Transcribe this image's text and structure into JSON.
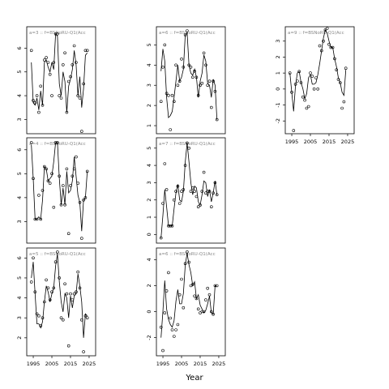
{
  "xlabel": "Year",
  "chart_data": [
    {
      "type": "line",
      "title": "a=3 :: f=BSNoRU-Q1(Acc",
      "xlim": [
        1991.5,
        2028.5
      ],
      "ylim": [
        2.4,
        6.9
      ],
      "yticks": [
        3,
        4,
        5,
        6
      ],
      "xticks": [],
      "line": {
        "x": [
          1994,
          1995,
          1996,
          1997,
          1998,
          1999,
          2000,
          2001,
          2002,
          2003,
          2004,
          2005,
          2006,
          2007,
          2008,
          2009,
          2010,
          2011,
          2012,
          2013,
          2014,
          2015,
          2016,
          2017,
          2018,
          2019,
          2020,
          2021,
          2022,
          2023,
          2024
        ],
        "y": [
          5.4,
          3.7,
          3.6,
          3.9,
          3.4,
          4.2,
          3.6,
          5.4,
          5.5,
          5.2,
          5.0,
          5.4,
          5.1,
          6.6,
          6.5,
          4.5,
          4.0,
          5.0,
          4.6,
          3.3,
          4.4,
          4.7,
          5.1,
          5.9,
          5.3,
          4.0,
          4.8,
          3.5,
          4.3,
          5.7,
          5.8
        ]
      },
      "points": {
        "x": [
          1994,
          1995,
          1996,
          1997,
          1998,
          1999,
          2000,
          2001,
          2002,
          2003,
          2004,
          2005,
          2006,
          2007,
          2008,
          2009,
          2010,
          2011,
          2012,
          2013,
          2014,
          2015,
          2016,
          2017,
          2018,
          2019,
          2020,
          2021,
          2022,
          2023,
          2024
        ],
        "y": [
          5.9,
          3.8,
          3.7,
          4.0,
          3.3,
          4.4,
          3.6,
          5.5,
          5.6,
          5.4,
          4.9,
          4.0,
          5.4,
          6.6,
          6.6,
          4.0,
          3.9,
          5.3,
          5.8,
          3.3,
          4.6,
          4.8,
          5.3,
          6.1,
          5.4,
          4.0,
          3.9,
          2.5,
          4.5,
          5.9,
          5.9
        ]
      }
    },
    {
      "type": "line",
      "title": "a=4 :: f=BSNoRU-Q1(Acc",
      "xlim": [
        1991.5,
        2028.5
      ],
      "ylim": [
        2.1,
        6.5
      ],
      "yticks": [
        3,
        4,
        5,
        6
      ],
      "xticks": [],
      "line": {
        "x": [
          1994,
          1995,
          1996,
          1997,
          1998,
          1999,
          2000,
          2001,
          2002,
          2003,
          2004,
          2005,
          2006,
          2007,
          2008,
          2009,
          2010,
          2011,
          2012,
          2013,
          2014,
          2015,
          2016,
          2017,
          2018,
          2019,
          2020,
          2021,
          2022,
          2023,
          2024
        ],
        "y": [
          6.2,
          4.8,
          3.1,
          3.1,
          3.2,
          3.1,
          3.9,
          5.3,
          5.2,
          4.7,
          4.8,
          4.9,
          5.5,
          6.3,
          6.3,
          4.8,
          3.7,
          4.4,
          3.7,
          5.1,
          4.2,
          4.3,
          4.7,
          5.7,
          4.9,
          4.1,
          3.8,
          2.6,
          3.9,
          4.0,
          5.1
        ]
      },
      "points": {
        "x": [
          1994,
          1995,
          1996,
          1997,
          1998,
          1999,
          2000,
          2001,
          2002,
          2003,
          2004,
          2005,
          2006,
          2007,
          2008,
          2009,
          2010,
          2011,
          2012,
          2013,
          2014,
          2015,
          2016,
          2017,
          2018,
          2019,
          2020,
          2021,
          2022,
          2023,
          2024
        ],
        "y": [
          6.3,
          4.8,
          3.1,
          3.1,
          4.1,
          3.1,
          4.3,
          5.3,
          5.2,
          4.7,
          4.6,
          5.0,
          3.6,
          6.3,
          6.3,
          4.9,
          3.7,
          4.5,
          3.7,
          5.2,
          2.5,
          4.5,
          4.9,
          5.2,
          5.7,
          4.6,
          3.8,
          2.3,
          3.9,
          4.0,
          5.1
        ]
      }
    },
    {
      "type": "line",
      "title": "a=5 :: f=BSNoRU-Q1(Acc",
      "xlim": [
        1991.5,
        2028.5
      ],
      "ylim": [
        1.1,
        6.5
      ],
      "yticks": [
        2,
        3,
        4,
        5,
        6
      ],
      "xticks": [
        1995,
        2005,
        2015,
        2025
      ],
      "line": {
        "x": [
          1994,
          1995,
          1996,
          1997,
          1998,
          1999,
          2000,
          2001,
          2002,
          2003,
          2004,
          2005,
          2006,
          2007,
          2008,
          2009,
          2010,
          2011,
          2012,
          2013,
          2014,
          2015,
          2016,
          2017,
          2018,
          2019,
          2020,
          2021,
          2022,
          2023,
          2024
        ],
        "y": [
          5.0,
          5.8,
          4.2,
          2.7,
          2.7,
          2.5,
          2.8,
          3.8,
          4.6,
          4.3,
          3.8,
          4.2,
          4.5,
          5.6,
          6.2,
          4.8,
          3.8,
          3.3,
          4.2,
          4.0,
          3.0,
          4.1,
          3.5,
          4.1,
          4.2,
          5.2,
          4.6,
          3.8,
          2.0,
          3.2,
          3.1
        ]
      },
      "points": {
        "x": [
          1994,
          1995,
          1996,
          1997,
          1998,
          1999,
          2000,
          2001,
          2002,
          2003,
          2004,
          2005,
          2006,
          2007,
          2008,
          2009,
          2010,
          2011,
          2012,
          2013,
          2014,
          2015,
          2016,
          2017,
          2018,
          2019,
          2020,
          2021,
          2022,
          2023,
          2024
        ],
        "y": [
          4.8,
          6.0,
          4.3,
          3.2,
          3.1,
          2.6,
          3.0,
          3.8,
          4.9,
          4.5,
          3.9,
          4.3,
          4.5,
          5.8,
          6.3,
          5.0,
          3.0,
          2.9,
          4.7,
          4.2,
          1.6,
          4.2,
          3.9,
          4.2,
          4.3,
          5.3,
          4.5,
          2.9,
          1.3,
          3.1,
          3.0
        ]
      }
    },
    {
      "type": "line",
      "title": "a=6 :: f=BSNoRU-Q1(Acc",
      "xlim": [
        1991.5,
        2028.5
      ],
      "ylim": [
        0.6,
        5.9
      ],
      "yticks": [
        1,
        2,
        3,
        4,
        5
      ],
      "xticks": [],
      "line": {
        "x": [
          1994,
          1995,
          1996,
          1997,
          1998,
          1999,
          2000,
          2001,
          2002,
          2003,
          2004,
          2005,
          2006,
          2007,
          2008,
          2009,
          2010,
          2011,
          2012,
          2013,
          2014,
          2015,
          2016,
          2017,
          2018,
          2019,
          2020,
          2021,
          2022,
          2023,
          2024
        ],
        "y": [
          3.7,
          4.8,
          4.2,
          2.4,
          1.4,
          1.5,
          1.7,
          2.4,
          3.2,
          4.0,
          3.2,
          3.4,
          3.8,
          5.5,
          5.6,
          4.0,
          3.6,
          3.5,
          3.8,
          3.4,
          2.4,
          3.2,
          3.6,
          4.5,
          4.2,
          3.1,
          3.0,
          2.4,
          3.3,
          3.0,
          1.3
        ]
      },
      "points": {
        "x": [
          1994,
          1995,
          1996,
          1997,
          1998,
          1999,
          2000,
          2001,
          2002,
          2003,
          2004,
          2005,
          2006,
          2007,
          2008,
          2009,
          2010,
          2011,
          2012,
          2013,
          2014,
          2015,
          2016,
          2017,
          2018,
          2019,
          2020,
          2021,
          2022,
          2023,
          2024
        ],
        "y": [
          2.2,
          3.9,
          5.0,
          2.6,
          2.5,
          0.8,
          2.5,
          2.2,
          4.0,
          3.0,
          3.2,
          4.3,
          3.9,
          5.5,
          5.7,
          4.0,
          3.9,
          3.4,
          3.7,
          3.4,
          2.5,
          3.0,
          3.1,
          4.6,
          4.0,
          3.0,
          3.2,
          1.9,
          3.2,
          2.7,
          1.3
        ]
      }
    },
    {
      "type": "line",
      "title": "a=7 :: f=BSNoRU-Q1(Acc",
      "xlim": [
        1991.5,
        2028.5
      ],
      "ylim": [
        -0.5,
        5.6
      ],
      "yticks": [
        0,
        1,
        2,
        3,
        4,
        5
      ],
      "xticks": [],
      "line": {
        "x": [
          1994,
          1995,
          1996,
          1997,
          1998,
          1999,
          2000,
          2001,
          2002,
          2003,
          2004,
          2005,
          2006,
          2007,
          2008,
          2009,
          2010,
          2011,
          2012,
          2013,
          2014,
          2015,
          2016,
          2017,
          2018,
          2019,
          2020,
          2021,
          2022,
          2023,
          2024
        ],
        "y": [
          -0.2,
          1.1,
          2.6,
          1.6,
          0.5,
          0.5,
          0.5,
          1.5,
          2.4,
          2.9,
          2.0,
          1.9,
          2.5,
          4.2,
          5.3,
          4.2,
          3.0,
          2.3,
          2.8,
          2.7,
          1.9,
          1.7,
          2.3,
          3.1,
          3.0,
          2.2,
          2.6,
          1.9,
          2.4,
          3.1,
          2.3
        ]
      },
      "points": {
        "x": [
          1994,
          1995,
          1996,
          1997,
          1998,
          1999,
          2000,
          2001,
          2002,
          2003,
          2004,
          2005,
          2006,
          2007,
          2008,
          2009,
          2010,
          2011,
          2012,
          2013,
          2014,
          2015,
          2016,
          2017,
          2018,
          2019,
          2020,
          2021,
          2022,
          2023,
          2024
        ],
        "y": [
          -0.2,
          1.8,
          4.1,
          2.6,
          0.5,
          0.5,
          0.5,
          2.0,
          2.5,
          2.8,
          1.8,
          2.5,
          2.6,
          4.0,
          5.3,
          5.0,
          2.5,
          2.7,
          2.5,
          2.2,
          1.6,
          1.7,
          2.5,
          3.6,
          2.4,
          2.5,
          2.5,
          1.6,
          2.4,
          3.0,
          2.3
        ]
      }
    },
    {
      "type": "line",
      "title": "a=6 :: f=BSNoRU-Q1(Acc",
      "xlim": [
        1991.5,
        2028.5
      ],
      "ylim": [
        -3.4,
        4.9
      ],
      "yticks": [
        -2,
        0,
        2,
        4
      ],
      "xticks": [
        1995,
        2005,
        2015,
        2025
      ],
      "line": {
        "x": [
          1994,
          1995,
          1996,
          1997,
          1998,
          1999,
          2000,
          2001,
          2002,
          2003,
          2004,
          2005,
          2006,
          2007,
          2008,
          2009,
          2010,
          2011,
          2012,
          2013,
          2014,
          2015,
          2016,
          2017,
          2018,
          2019,
          2020,
          2021,
          2022,
          2023,
          2024
        ],
        "y": [
          -2.0,
          0.0,
          2.4,
          0.2,
          -0.6,
          -1.0,
          -1.2,
          -0.7,
          0.8,
          1.7,
          0.6,
          0.6,
          1.4,
          3.6,
          4.5,
          3.6,
          3.0,
          2.0,
          2.3,
          1.0,
          1.3,
          0.5,
          0.2,
          -0.1,
          0.1,
          0.6,
          1.2,
          -0.1,
          -0.2,
          2.0,
          1.9
        ]
      },
      "points": {
        "x": [
          1994,
          1995,
          1996,
          1997,
          1998,
          1999,
          2000,
          2001,
          2002,
          2003,
          2004,
          2005,
          2006,
          2007,
          2008,
          2009,
          2010,
          2011,
          2012,
          2013,
          2014,
          2015,
          2016,
          2017,
          2018,
          2019,
          2020,
          2021,
          2022,
          2023,
          2024
        ],
        "y": [
          -1.2,
          -3.0,
          -0.1,
          1.6,
          3.0,
          -0.5,
          -1.4,
          -1.9,
          -1.4,
          -1.0,
          1.3,
          2.5,
          0.3,
          3.7,
          4.6,
          3.8,
          2.0,
          2.1,
          1.2,
          1.0,
          0.2,
          -0.1,
          0.0,
          0.0,
          0.9,
          1.8,
          1.3,
          0.0,
          -0.2,
          2.0,
          2.0
        ]
      }
    },
    {
      "type": "line",
      "title": "a=9 :: f=BSNoRU-Q1(Acc",
      "xlim": [
        1991.5,
        2028.5
      ],
      "ylim": [
        -2.8,
        3.9
      ],
      "yticks": [
        -2,
        -1,
        0,
        1,
        2,
        3
      ],
      "xticks": [
        1995,
        2005,
        2015,
        2025
      ],
      "line": {
        "x": [
          1994,
          1995,
          1996,
          1997,
          1998,
          1999,
          2000,
          2001,
          2002,
          2003,
          2004,
          2005,
          2006,
          2007,
          2008,
          2009,
          2010,
          2011,
          2012,
          2013,
          2014,
          2015,
          2016,
          2017,
          2018,
          2019,
          2020,
          2021,
          2022,
          2023,
          2024
        ],
        "y": [
          1.0,
          -0.2,
          -1.4,
          0.2,
          1.0,
          1.1,
          0.4,
          0.0,
          -0.6,
          -0.3,
          0.7,
          0.9,
          0.3,
          0.3,
          0.4,
          0.9,
          1.6,
          2.4,
          3.2,
          3.7,
          3.5,
          3.0,
          2.6,
          2.6,
          1.9,
          1.4,
          0.7,
          0.4,
          -0.2,
          -0.4,
          1.2
        ]
      },
      "points": {
        "x": [
          1994,
          1995,
          1996,
          1997,
          1998,
          1999,
          2000,
          2001,
          2002,
          2003,
          2004,
          2005,
          2006,
          2007,
          2008,
          2009,
          2010,
          2011,
          2012,
          2013,
          2014,
          2015,
          2016,
          2017,
          2018,
          2019,
          2020,
          2021,
          2022,
          2023,
          2024
        ],
        "y": [
          1.0,
          -0.2,
          -2.6,
          0.3,
          0.5,
          1.1,
          0.4,
          -0.5,
          -0.7,
          -1.2,
          -1.1,
          1.0,
          0.8,
          0.0,
          0.7,
          0.0,
          2.7,
          2.4,
          3.0,
          3.7,
          3.8,
          2.8,
          2.6,
          2.6,
          1.9,
          1.2,
          0.6,
          0.4,
          -1.2,
          -0.8,
          1.3
        ]
      }
    }
  ]
}
